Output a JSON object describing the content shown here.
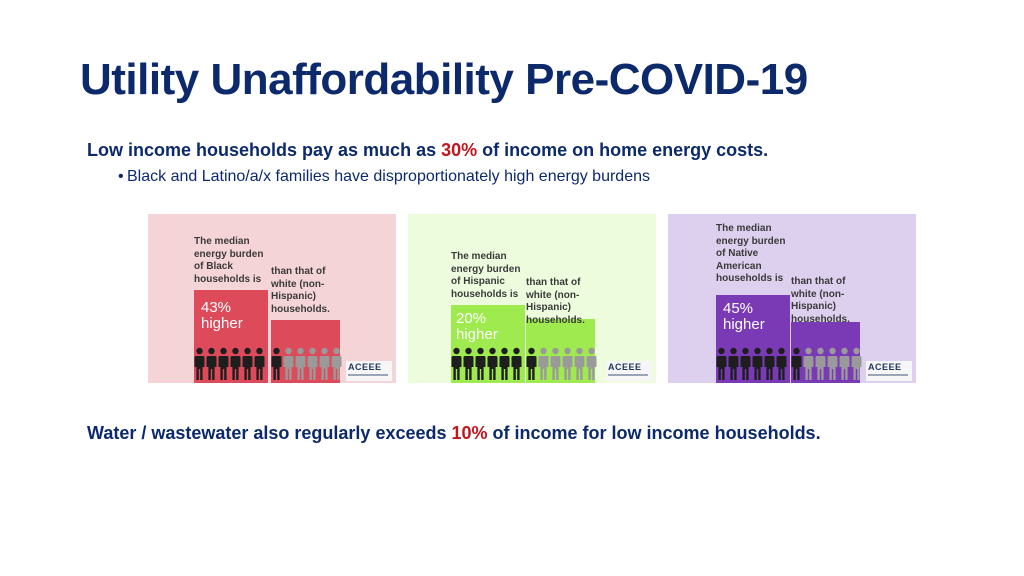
{
  "slide": {
    "title": "Utility Unaffordability Pre-COVID-19",
    "lead": {
      "before": "Low income households pay as much as ",
      "highlight": "30%",
      "after": " of income on home energy costs."
    },
    "bullet": "Black and Latino/a/x families have disproportionately high energy burdens",
    "footer": {
      "before": "Water / wastewater also regularly exceeds ",
      "highlight": "10%",
      "after": " of income for low income households."
    }
  },
  "infographics": [
    {
      "desc": "The median energy burden of Black households is",
      "compare": "than that of white (non-Hispanic) households.",
      "pct_top": "43%",
      "pct_bottom": "higher",
      "percent_higher": 43,
      "logo": "ACEEE",
      "color": "#dd4a5a"
    },
    {
      "desc": "The median energy burden of Hispanic households is",
      "compare": "than that of white (non-Hispanic) households.",
      "pct_top": "20%",
      "pct_bottom": "higher",
      "percent_higher": 20,
      "logo": "ACEEE",
      "color": "#9eea4f"
    },
    {
      "desc": "The median energy burden of Native American households is",
      "compare": "than that of white (non-Hispanic) households.",
      "pct_top": "45%",
      "pct_bottom": "higher",
      "percent_higher": 45,
      "logo": "ACEEE",
      "color": "#7a3ab6"
    }
  ],
  "colors": {
    "title": "#0c2a6b",
    "highlight": "#c0161c",
    "person_dark": "#1e1e1e",
    "person_light": "#9a9a9a"
  }
}
